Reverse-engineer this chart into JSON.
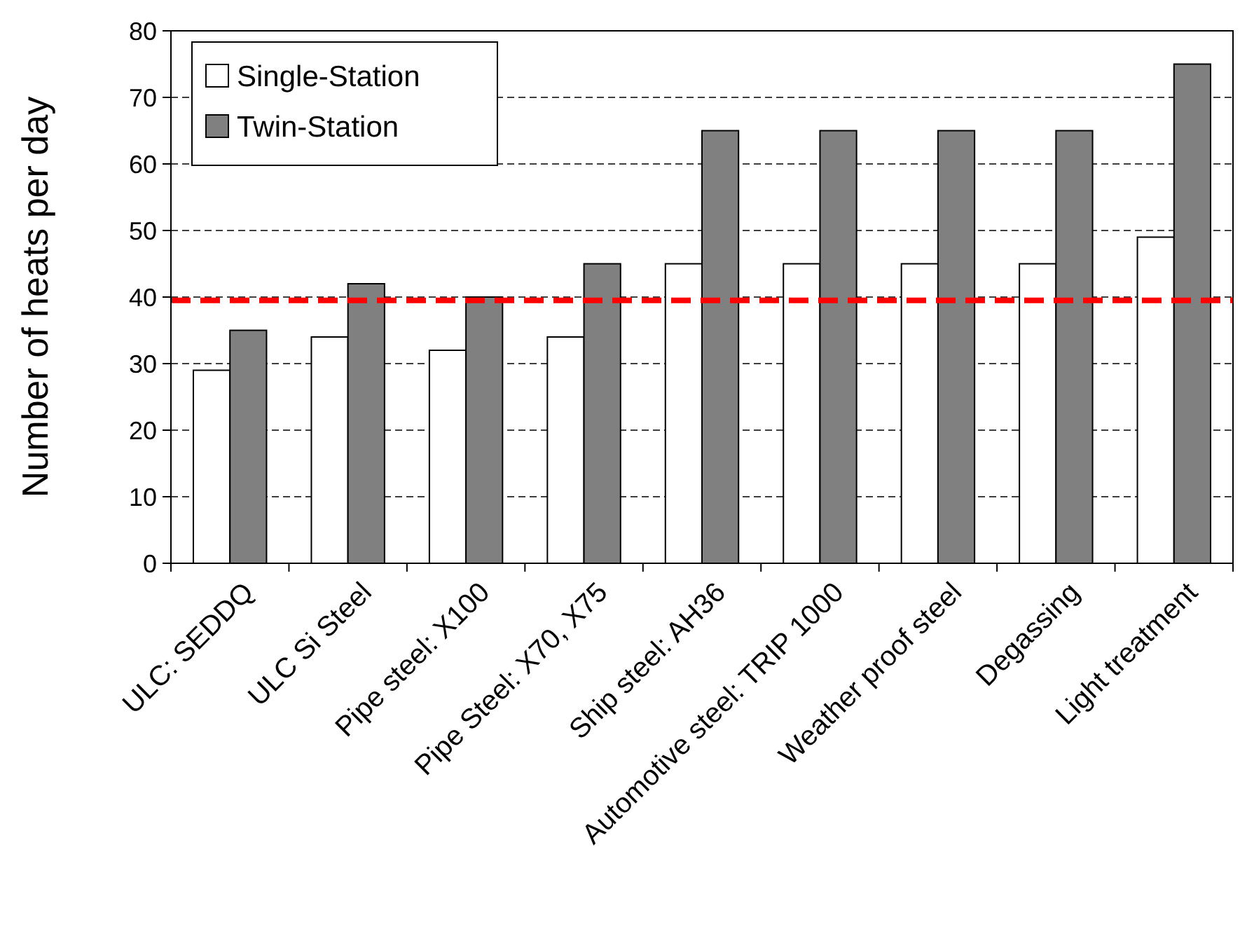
{
  "chart_data": {
    "type": "bar",
    "ylabel": "Number of heats per day",
    "categories": [
      "ULC: SEDDQ",
      "ULC Si Steel",
      "Pipe steel: X100",
      "Pipe Steel: X70, X75",
      "Ship steel: AH36",
      "Automotive steel: TRIP 1000",
      "Weather proof steel",
      "Degassing",
      "Light treatment"
    ],
    "series": [
      {
        "name": "Single-Station",
        "color": "#ffffff",
        "values": [
          29,
          34,
          32,
          34,
          45,
          45,
          45,
          45,
          49
        ]
      },
      {
        "name": "Twin-Station",
        "color": "#808080",
        "values": [
          35,
          42,
          40,
          45,
          65,
          65,
          65,
          65,
          75
        ]
      }
    ],
    "ylim": [
      0,
      80
    ],
    "yticks": [
      0,
      10,
      20,
      30,
      40,
      50,
      60,
      70,
      80
    ],
    "grid": "y",
    "legend": "top left",
    "ref_lines": [
      {
        "axis": "y",
        "value": 39.5,
        "color": "#ff0000",
        "line_style": "dashed"
      }
    ]
  }
}
